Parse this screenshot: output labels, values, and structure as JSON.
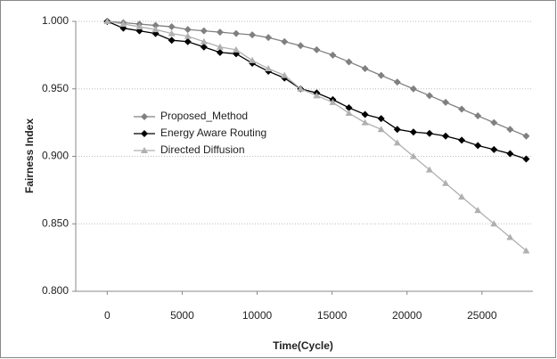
{
  "chart_data": {
    "type": "line",
    "x_label": "Time(Cycle)",
    "y_label": "Fairness Index",
    "x": [
      0,
      1075,
      2150,
      3225,
      4300,
      5375,
      6450,
      7525,
      8600,
      9675,
      10750,
      11825,
      12900,
      13975,
      15050,
      16125,
      17200,
      18275,
      19350,
      20425,
      21500,
      22575,
      23650,
      24725,
      25800,
      26875,
      27950
    ],
    "series": [
      {
        "name": "Proposed_Method",
        "color": "#808080",
        "marker": "diamond",
        "values": [
          1.0,
          0.999,
          0.998,
          0.997,
          0.996,
          0.994,
          0.993,
          0.992,
          0.991,
          0.99,
          0.988,
          0.985,
          0.982,
          0.979,
          0.975,
          0.97,
          0.965,
          0.96,
          0.955,
          0.95,
          0.945,
          0.94,
          0.935,
          0.93,
          0.925,
          0.92,
          0.915
        ]
      },
      {
        "name": "Energy Aware Routing",
        "color": "#000000",
        "marker": "diamond",
        "values": [
          1.0,
          0.995,
          0.993,
          0.991,
          0.986,
          0.985,
          0.981,
          0.977,
          0.976,
          0.969,
          0.963,
          0.958,
          0.95,
          0.947,
          0.942,
          0.936,
          0.931,
          0.928,
          0.92,
          0.918,
          0.917,
          0.915,
          0.912,
          0.908,
          0.905,
          0.902,
          0.898
        ]
      },
      {
        "name": "Directed Diffusion",
        "color": "#b0b0b0",
        "marker": "triangle",
        "values": [
          1.0,
          0.998,
          0.996,
          0.994,
          0.991,
          0.989,
          0.985,
          0.981,
          0.979,
          0.971,
          0.965,
          0.96,
          0.95,
          0.945,
          0.94,
          0.932,
          0.925,
          0.92,
          0.91,
          0.9,
          0.89,
          0.88,
          0.87,
          0.86,
          0.85,
          0.84,
          0.83
        ]
      }
    ],
    "xlim": [
      -2100,
      28400
    ],
    "xticks": [
      0,
      5000,
      10000,
      15000,
      20000,
      25000
    ],
    "ylim": [
      0.8,
      1.0
    ],
    "yticks": [
      {
        "value": 0.8,
        "label": "0.800"
      },
      {
        "value": 0.85,
        "label": "0.850"
      },
      {
        "value": 0.9,
        "label": "0.900"
      },
      {
        "value": 0.95,
        "label": "0.950"
      },
      {
        "value": 1.0,
        "label": "1.000"
      }
    ],
    "grid": true,
    "legend": "left"
  }
}
